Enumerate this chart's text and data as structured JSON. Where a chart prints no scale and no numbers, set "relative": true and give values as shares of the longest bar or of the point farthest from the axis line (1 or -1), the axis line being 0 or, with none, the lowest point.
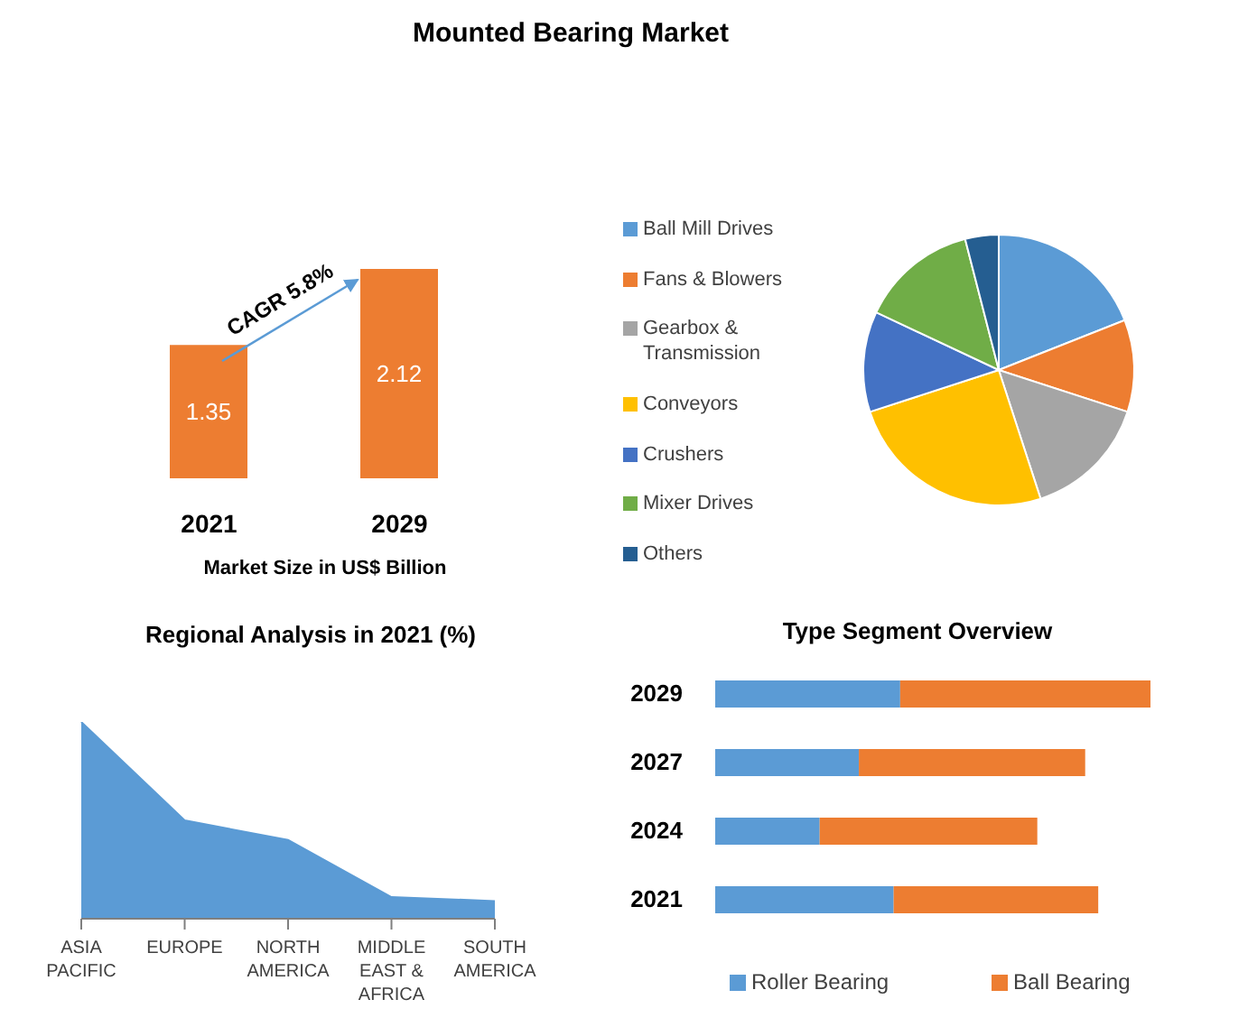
{
  "chart_data": [
    {
      "type": "bar",
      "title": "Mounted Bearing Market",
      "categories": [
        "2021",
        "2029"
      ],
      "values": [
        1.35,
        2.12
      ],
      "color": "#ed7d31",
      "data_labels": true,
      "xlabel": "Market Size in US$ Billion",
      "annotations": [
        "CAGR 5.8%"
      ],
      "tick_labels": "x"
    },
    {
      "type": "pie",
      "categories": [
        "Ball Mill Drives",
        "Fans & Blowers",
        "Gearbox & Transmission",
        "Conveyors",
        "Crushers",
        "Mixer Drives",
        "Others"
      ],
      "values": [
        19,
        11,
        15,
        25,
        12,
        14,
        4
      ],
      "colors": [
        "#5b9bd5",
        "#ed7d31",
        "#a5a5a5",
        "#ffc000",
        "#4472c4",
        "#70ad47",
        "#255e91"
      ],
      "legend": "left"
    },
    {
      "type": "area",
      "title": "Regional Analysis in 2021 (%)",
      "categories": [
        "ASIA PACIFIC",
        "EUROPE",
        "NORTH AMERICA",
        "MIDDLE EAST & AFRICA",
        "SOUTH AMERICA"
      ],
      "values": [
        1,
        0.5,
        0.4,
        0.11,
        0.09
      ],
      "color": "#5b9bd5",
      "relative": true
    },
    {
      "type": "bar",
      "title": "Type Segment Overview",
      "orientation": "horizontal",
      "stacked": true,
      "relative": true,
      "categories": [
        "2029",
        "2027",
        "2024",
        "2021"
      ],
      "series": [
        {
          "name": "Roller Bearing",
          "color": "#5b9bd5",
          "values": [
            0.425,
            0.33,
            0.24,
            0.41
          ]
        },
        {
          "name": "Ball Bearing",
          "color": "#ed7d31",
          "values": [
            0.575,
            0.52,
            0.5,
            0.47
          ]
        }
      ],
      "legend": "bottom"
    }
  ]
}
